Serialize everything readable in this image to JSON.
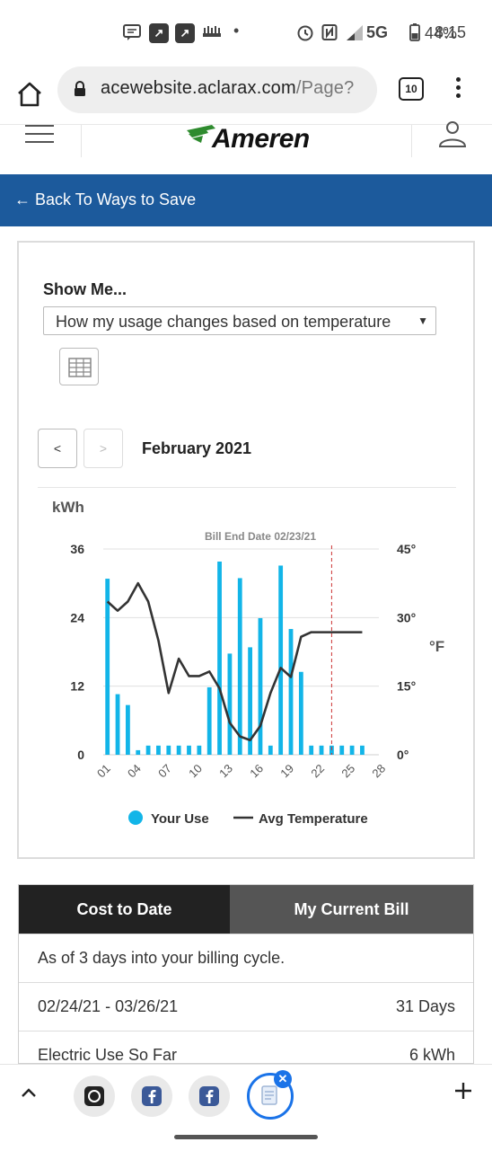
{
  "status_bar": {
    "time": "8:15",
    "battery": "44%",
    "network": "5G",
    "notification_icons": [
      "message-icon",
      "app-icon",
      "app-icon",
      "sync-icon"
    ]
  },
  "browser": {
    "url_host": "acewebsite.aclarax.com",
    "url_path": "/Page?",
    "tab_count": "10"
  },
  "header": {
    "logo_text": "Ameren",
    "logo_color": "#2e8b2e"
  },
  "backbar": {
    "label": "← Back To Ways to Save",
    "color": "#1c5a9c"
  },
  "chart_card": {
    "show_me_label": "Show Me...",
    "selected_option": "How my usage changes based on temperature",
    "prev_label": "<",
    "next_label": ">",
    "month_label": "February 2021"
  },
  "chart_data": {
    "type": "bar",
    "title": "",
    "unit_label": "kWh",
    "right_unit_label": "°F",
    "annotation": "Bill End Date 02/23/21",
    "annotation_day": 23,
    "x_ticks": [
      "01",
      "04",
      "07",
      "10",
      "13",
      "16",
      "19",
      "22",
      "25",
      "28"
    ],
    "y_ticks": [
      "0",
      "12",
      "24",
      "36"
    ],
    "y2_ticks": [
      "0°",
      "15°",
      "30°",
      "45°"
    ],
    "ylim": [
      0,
      36
    ],
    "y2lim": [
      0,
      45
    ],
    "x": [
      1,
      2,
      3,
      4,
      5,
      6,
      7,
      8,
      9,
      10,
      11,
      12,
      13,
      14,
      15,
      16,
      17,
      18,
      19,
      20,
      21,
      22,
      23,
      24,
      25,
      26
    ],
    "series": [
      {
        "name": "Your Use",
        "type": "bar",
        "color": "#12b5e8",
        "values": [
          30.8,
          10.6,
          8.7,
          0.8,
          1.6,
          1.6,
          1.6,
          1.6,
          1.6,
          1.6,
          11.8,
          33.8,
          17.7,
          30.9,
          18.8,
          23.9,
          1.6,
          33.1,
          22.0,
          14.5,
          1.6,
          1.6,
          1.6,
          1.6,
          1.6,
          1.6
        ]
      },
      {
        "name": "Avg Temperature",
        "type": "line",
        "color": "#333333",
        "values": [
          33.5,
          31.5,
          33.5,
          37.5,
          33.5,
          25,
          13.5,
          21,
          17.2,
          17.2,
          18.2,
          14.5,
          7,
          4,
          3.2,
          6.3,
          13.5,
          19,
          17,
          25.8,
          26.8,
          26.8,
          26.8,
          26.8,
          26.8,
          26.8
        ]
      }
    ],
    "legend": [
      "Your Use",
      "Avg Temperature"
    ],
    "legend_position": "bottom"
  },
  "bill_card": {
    "tab_cost": "Cost to Date",
    "tab_current": "My Current Bill",
    "cycle_text": "As of 3 days into your billing cycle.",
    "date_range": "02/24/21 - 03/26/21",
    "days": "31 Days",
    "electric_label": "Electric Use So Far",
    "electric_value": "6 kWh"
  }
}
